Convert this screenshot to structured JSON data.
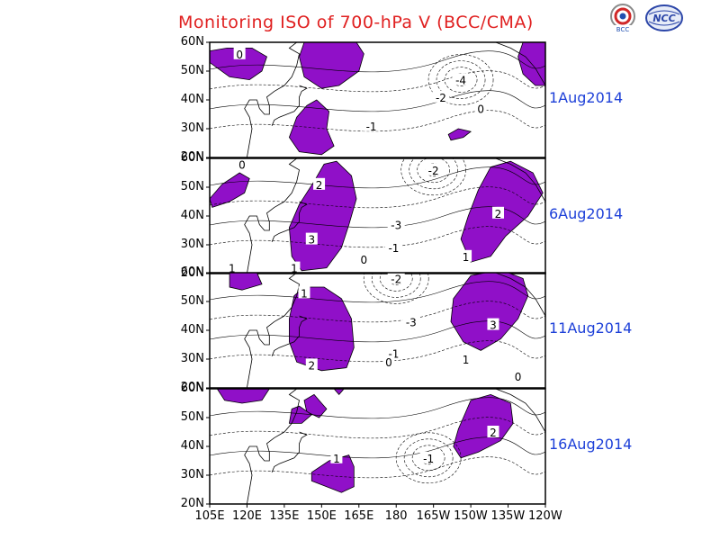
{
  "title": "Monitoring ISO of 700-hPa V (BCC/CMA)",
  "logos": {
    "left": "BCC",
    "right": "NCC"
  },
  "colors": {
    "shading": "#9010c8",
    "title": "#e02020",
    "date": "#1c3fd8"
  },
  "chart_data": {
    "type": "contour-map",
    "variable": "700-hPa meridional wind ISO",
    "x_ticks": [
      "105E",
      "120E",
      "135E",
      "150E",
      "165E",
      "180",
      "165W",
      "150W",
      "135W",
      "120W"
    ],
    "y_ticks_panel": [
      "20N",
      "30N",
      "40N",
      "50N",
      "60N"
    ],
    "y_ticks_bottom": [
      "20N",
      "30N",
      "40N",
      "50N",
      "60N"
    ],
    "panels": [
      {
        "date": "1Aug2014",
        "labels": [
          {
            "text": "0",
            "lon": 117,
            "lat": 56
          },
          {
            "text": "-4",
            "lon": 206,
            "lat": 47
          },
          {
            "text": "-2",
            "lon": 198,
            "lat": 41
          },
          {
            "text": "0",
            "lon": 214,
            "lat": 37
          },
          {
            "text": "-1",
            "lon": 170,
            "lat": 31
          }
        ],
        "shades": [
          [
            [
              105,
              53
            ],
            [
              113,
              48
            ],
            [
              121,
              47
            ],
            [
              126,
              50
            ],
            [
              128,
              55
            ],
            [
              122,
              58
            ],
            [
              112,
              58
            ],
            [
              105,
              57
            ]
          ],
          [
            [
              143,
              60
            ],
            [
              141,
              55
            ],
            [
              143,
              48
            ],
            [
              150,
              44
            ],
            [
              157,
              45
            ],
            [
              165,
              50
            ],
            [
              167,
              56
            ],
            [
              164,
              60
            ]
          ],
          [
            [
              144,
              38
            ],
            [
              148,
              40
            ],
            [
              153,
              36
            ],
            [
              152,
              30
            ],
            [
              155,
              24
            ],
            [
              150,
              21
            ],
            [
              141,
              22
            ],
            [
              137,
              27
            ],
            [
              140,
              34
            ]
          ],
          [
            [
              201,
              28
            ],
            [
              205,
              30
            ],
            [
              210,
              29
            ],
            [
              207,
              27
            ],
            [
              202,
              26
            ]
          ],
          [
            [
              231,
              60
            ],
            [
              229,
              55
            ],
            [
              231,
              49
            ],
            [
              236,
              45
            ],
            [
              240,
              45
            ],
            [
              240,
              60
            ]
          ]
        ]
      },
      {
        "date": "6Aug2014",
        "labels": [
          {
            "text": "0",
            "lon": 118,
            "lat": 58
          },
          {
            "text": "-2",
            "lon": 195,
            "lat": 56
          },
          {
            "text": "2",
            "lon": 149,
            "lat": 51
          },
          {
            "text": "2",
            "lon": 221,
            "lat": 41
          },
          {
            "text": "-3",
            "lon": 180,
            "lat": 37
          },
          {
            "text": "3",
            "lon": 146,
            "lat": 32
          },
          {
            "text": "-1",
            "lon": 179,
            "lat": 29
          },
          {
            "text": "0",
            "lon": 167,
            "lat": 25
          },
          {
            "text": "1",
            "lon": 208,
            "lat": 26
          },
          {
            "text": "1",
            "lon": 139,
            "lat": 22
          },
          {
            "text": "1",
            "lon": 114,
            "lat": 22
          }
        ],
        "shades": [
          [
            [
              105,
              46
            ],
            [
              110,
              51
            ],
            [
              117,
              55
            ],
            [
              121,
              53
            ],
            [
              119,
              48
            ],
            [
              113,
              45
            ],
            [
              106,
              43
            ]
          ],
          [
            [
              142,
              21
            ],
            [
              138,
              26
            ],
            [
              137,
              36
            ],
            [
              141,
              44
            ],
            [
              147,
              52
            ],
            [
              151,
              58
            ],
            [
              156,
              59
            ],
            [
              162,
              54
            ],
            [
              164,
              46
            ],
            [
              161,
              37
            ],
            [
              158,
              29
            ],
            [
              152,
              22
            ]
          ],
          [
            [
              210,
              24
            ],
            [
              206,
              32
            ],
            [
              209,
              40
            ],
            [
              213,
              49
            ],
            [
              218,
              57
            ],
            [
              226,
              59
            ],
            [
              235,
              55
            ],
            [
              239,
              48
            ],
            [
              233,
              40
            ],
            [
              224,
              33
            ],
            [
              218,
              26
            ]
          ]
        ]
      },
      {
        "date": "11Aug2014",
        "labels": [
          {
            "text": "-2",
            "lon": 180,
            "lat": 58
          },
          {
            "text": "1",
            "lon": 143,
            "lat": 53
          },
          {
            "text": "3",
            "lon": 219,
            "lat": 42
          },
          {
            "text": "-3",
            "lon": 186,
            "lat": 43
          },
          {
            "text": "-1",
            "lon": 179,
            "lat": 32
          },
          {
            "text": "0",
            "lon": 177,
            "lat": 29
          },
          {
            "text": "1",
            "lon": 208,
            "lat": 30
          },
          {
            "text": "2",
            "lon": 146,
            "lat": 28
          },
          {
            "text": "0",
            "lon": 229,
            "lat": 24
          }
        ],
        "shades": [
          [
            [
              113,
              60
            ],
            [
              113,
              55
            ],
            [
              118,
              54
            ],
            [
              126,
              56
            ],
            [
              124,
              60
            ]
          ],
          [
            [
              139,
              52
            ],
            [
              137,
              44
            ],
            [
              137,
              36
            ],
            [
              140,
              29
            ],
            [
              150,
              26
            ],
            [
              160,
              27
            ],
            [
              163,
              34
            ],
            [
              162,
              44
            ],
            [
              158,
              51
            ],
            [
              151,
              55
            ],
            [
              143,
              55
            ]
          ],
          [
            [
              203,
              51
            ],
            [
              202,
              43
            ],
            [
              207,
              36
            ],
            [
              214,
              33
            ],
            [
              222,
              37
            ],
            [
              229,
              44
            ],
            [
              233,
              52
            ],
            [
              231,
              58
            ],
            [
              222,
              61
            ],
            [
              210,
              59
            ]
          ]
        ]
      },
      {
        "date": "16Aug2014",
        "labels": [
          {
            "text": "2",
            "lon": 219,
            "lat": 45
          },
          {
            "text": "1",
            "lon": 156,
            "lat": 36
          },
          {
            "text": "-1",
            "lon": 193,
            "lat": 36
          }
        ],
        "shades": [
          [
            [
              108,
              60
            ],
            [
              111,
              56
            ],
            [
              118,
              55
            ],
            [
              126,
              56
            ],
            [
              129,
              60
            ]
          ],
          [
            [
              147,
              58
            ],
            [
              150,
              55
            ],
            [
              152,
              53
            ],
            [
              149,
              50
            ],
            [
              144,
              52
            ],
            [
              143,
              56
            ]
          ],
          [
            [
              138,
              53
            ],
            [
              141,
              54
            ],
            [
              146,
              51
            ],
            [
              142,
              48
            ],
            [
              137,
              48
            ]
          ],
          [
            [
              155,
              60
            ],
            [
              157,
              58
            ],
            [
              159,
              60
            ]
          ],
          [
            [
              146,
              31
            ],
            [
              153,
              35
            ],
            [
              161,
              37
            ],
            [
              163,
              33
            ],
            [
              163,
              26
            ],
            [
              158,
              24
            ],
            [
              152,
              26
            ],
            [
              146,
              28
            ]
          ],
          [
            [
              208,
              52
            ],
            [
              210,
              56
            ],
            [
              218,
              58
            ],
            [
              226,
              55
            ],
            [
              227,
              48
            ],
            [
              222,
              42
            ],
            [
              213,
              38
            ],
            [
              206,
              36
            ],
            [
              203,
              40
            ],
            [
              205,
              46
            ]
          ]
        ]
      }
    ]
  }
}
